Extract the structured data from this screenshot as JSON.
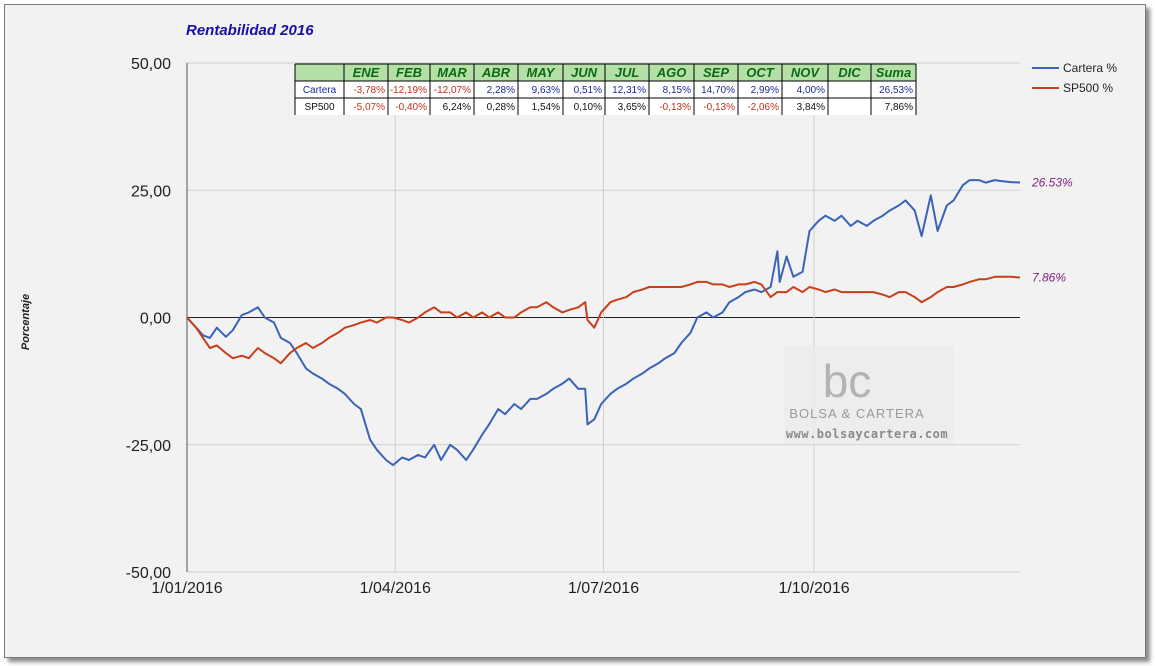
{
  "chart_data": {
    "type": "line",
    "title": "Rentabilidad 2016",
    "ylabel": "Porcentaje",
    "xlabel": "",
    "ylim": [
      -50,
      50
    ],
    "y_ticks": [
      "50,00",
      "25,00",
      "0,00",
      "-25,00",
      "-50,00"
    ],
    "x_ticks": [
      "1/01/2016",
      "1/04/2016",
      "1/07/2016",
      "1/10/2016"
    ],
    "x_range": [
      "2016-01-01",
      "2016-12-30"
    ],
    "grid": true,
    "legend_position": "right",
    "series": [
      {
        "name": "Cartera %",
        "color": "#3a63b8",
        "end_label": "26.53%",
        "points": [
          [
            "2016-01-01",
            0
          ],
          [
            "2016-01-05",
            -2
          ],
          [
            "2016-01-08",
            -3.5
          ],
          [
            "2016-01-11",
            -4
          ],
          [
            "2016-01-14",
            -2
          ],
          [
            "2016-01-18",
            -3.8
          ],
          [
            "2016-01-21",
            -2.5
          ],
          [
            "2016-01-25",
            0.5
          ],
          [
            "2016-01-28",
            1
          ],
          [
            "2016-02-01",
            2
          ],
          [
            "2016-02-04",
            0
          ],
          [
            "2016-02-08",
            -1
          ],
          [
            "2016-02-11",
            -4
          ],
          [
            "2016-02-15",
            -5
          ],
          [
            "2016-02-18",
            -7
          ],
          [
            "2016-02-22",
            -10
          ],
          [
            "2016-02-25",
            -11
          ],
          [
            "2016-02-29",
            -12
          ],
          [
            "2016-03-03",
            -13
          ],
          [
            "2016-03-07",
            -14
          ],
          [
            "2016-03-10",
            -15
          ],
          [
            "2016-03-14",
            -17
          ],
          [
            "2016-03-17",
            -18
          ],
          [
            "2016-03-21",
            -24
          ],
          [
            "2016-03-24",
            -26
          ],
          [
            "2016-03-28",
            -28
          ],
          [
            "2016-03-31",
            -29
          ],
          [
            "2016-04-04",
            -27.5
          ],
          [
            "2016-04-07",
            -28
          ],
          [
            "2016-04-11",
            -27
          ],
          [
            "2016-04-14",
            -27.5
          ],
          [
            "2016-04-18",
            -25
          ],
          [
            "2016-04-21",
            -28
          ],
          [
            "2016-04-25",
            -25
          ],
          [
            "2016-04-28",
            -26
          ],
          [
            "2016-05-02",
            -28
          ],
          [
            "2016-05-05",
            -26
          ],
          [
            "2016-05-09",
            -23
          ],
          [
            "2016-05-12",
            -21
          ],
          [
            "2016-05-16",
            -18
          ],
          [
            "2016-05-19",
            -19
          ],
          [
            "2016-05-23",
            -17
          ],
          [
            "2016-05-26",
            -18
          ],
          [
            "2016-05-30",
            -16
          ],
          [
            "2016-06-02",
            -16
          ],
          [
            "2016-06-06",
            -15
          ],
          [
            "2016-06-09",
            -14
          ],
          [
            "2016-06-13",
            -13
          ],
          [
            "2016-06-16",
            -12
          ],
          [
            "2016-06-20",
            -14
          ],
          [
            "2016-06-23",
            -14
          ],
          [
            "2016-06-24",
            -21
          ],
          [
            "2016-06-27",
            -20
          ],
          [
            "2016-06-30",
            -17
          ],
          [
            "2016-07-04",
            -15
          ],
          [
            "2016-07-07",
            -14
          ],
          [
            "2016-07-11",
            -13
          ],
          [
            "2016-07-14",
            -12
          ],
          [
            "2016-07-18",
            -11
          ],
          [
            "2016-07-21",
            -10
          ],
          [
            "2016-07-25",
            -9
          ],
          [
            "2016-07-28",
            -8
          ],
          [
            "2016-08-01",
            -7
          ],
          [
            "2016-08-04",
            -5
          ],
          [
            "2016-08-08",
            -3
          ],
          [
            "2016-08-11",
            0
          ],
          [
            "2016-08-15",
            1
          ],
          [
            "2016-08-18",
            0
          ],
          [
            "2016-08-22",
            1
          ],
          [
            "2016-08-25",
            3
          ],
          [
            "2016-08-29",
            4
          ],
          [
            "2016-09-01",
            5
          ],
          [
            "2016-09-05",
            5.5
          ],
          [
            "2016-09-08",
            5
          ],
          [
            "2016-09-12",
            6
          ],
          [
            "2016-09-15",
            13
          ],
          [
            "2016-09-16",
            7
          ],
          [
            "2016-09-19",
            12
          ],
          [
            "2016-09-22",
            8
          ],
          [
            "2016-09-26",
            9
          ],
          [
            "2016-09-29",
            17
          ],
          [
            "2016-10-03",
            19
          ],
          [
            "2016-10-06",
            20
          ],
          [
            "2016-10-10",
            19
          ],
          [
            "2016-10-13",
            20
          ],
          [
            "2016-10-17",
            18
          ],
          [
            "2016-10-20",
            19
          ],
          [
            "2016-10-24",
            18
          ],
          [
            "2016-10-27",
            19
          ],
          [
            "2016-10-31",
            20
          ],
          [
            "2016-11-03",
            21
          ],
          [
            "2016-11-07",
            22
          ],
          [
            "2016-11-10",
            23
          ],
          [
            "2016-11-14",
            21
          ],
          [
            "2016-11-17",
            16
          ],
          [
            "2016-11-21",
            24
          ],
          [
            "2016-11-24",
            17
          ],
          [
            "2016-11-28",
            22
          ],
          [
            "2016-12-01",
            23
          ],
          [
            "2016-12-05",
            26
          ],
          [
            "2016-12-08",
            27
          ],
          [
            "2016-12-12",
            27
          ],
          [
            "2016-12-15",
            26.5
          ],
          [
            "2016-12-19",
            27
          ],
          [
            "2016-12-22",
            26.8
          ],
          [
            "2016-12-26",
            26.6
          ],
          [
            "2016-12-30",
            26.53
          ]
        ]
      },
      {
        "name": "SP500 %",
        "color": "#c6401a",
        "end_label": "7.86%",
        "points": [
          [
            "2016-01-01",
            0
          ],
          [
            "2016-01-05",
            -2
          ],
          [
            "2016-01-08",
            -4
          ],
          [
            "2016-01-11",
            -6
          ],
          [
            "2016-01-14",
            -5.5
          ],
          [
            "2016-01-18",
            -7
          ],
          [
            "2016-01-21",
            -8
          ],
          [
            "2016-01-25",
            -7.5
          ],
          [
            "2016-01-28",
            -8
          ],
          [
            "2016-02-01",
            -6
          ],
          [
            "2016-02-04",
            -7
          ],
          [
            "2016-02-08",
            -8
          ],
          [
            "2016-02-11",
            -9
          ],
          [
            "2016-02-15",
            -7
          ],
          [
            "2016-02-18",
            -6
          ],
          [
            "2016-02-22",
            -5
          ],
          [
            "2016-02-25",
            -6
          ],
          [
            "2016-02-29",
            -5
          ],
          [
            "2016-03-03",
            -4
          ],
          [
            "2016-03-07",
            -3
          ],
          [
            "2016-03-10",
            -2
          ],
          [
            "2016-03-14",
            -1.5
          ],
          [
            "2016-03-17",
            -1
          ],
          [
            "2016-03-21",
            -0.5
          ],
          [
            "2016-03-24",
            -1
          ],
          [
            "2016-03-28",
            0
          ],
          [
            "2016-03-31",
            0
          ],
          [
            "2016-04-04",
            -0.5
          ],
          [
            "2016-04-07",
            -1
          ],
          [
            "2016-04-11",
            0
          ],
          [
            "2016-04-14",
            1
          ],
          [
            "2016-04-18",
            2
          ],
          [
            "2016-04-21",
            1
          ],
          [
            "2016-04-25",
            1
          ],
          [
            "2016-04-28",
            0
          ],
          [
            "2016-05-02",
            1
          ],
          [
            "2016-05-05",
            0
          ],
          [
            "2016-05-09",
            1
          ],
          [
            "2016-05-12",
            0
          ],
          [
            "2016-05-16",
            1
          ],
          [
            "2016-05-19",
            0
          ],
          [
            "2016-05-23",
            0
          ],
          [
            "2016-05-26",
            1
          ],
          [
            "2016-05-30",
            2
          ],
          [
            "2016-06-02",
            2
          ],
          [
            "2016-06-06",
            3
          ],
          [
            "2016-06-09",
            2
          ],
          [
            "2016-06-13",
            1
          ],
          [
            "2016-06-16",
            1.5
          ],
          [
            "2016-06-20",
            2
          ],
          [
            "2016-06-23",
            3
          ],
          [
            "2016-06-24",
            -0.5
          ],
          [
            "2016-06-27",
            -2
          ],
          [
            "2016-06-30",
            1
          ],
          [
            "2016-07-04",
            3
          ],
          [
            "2016-07-07",
            3.5
          ],
          [
            "2016-07-11",
            4
          ],
          [
            "2016-07-14",
            5
          ],
          [
            "2016-07-18",
            5.5
          ],
          [
            "2016-07-21",
            6
          ],
          [
            "2016-07-25",
            6
          ],
          [
            "2016-07-28",
            6
          ],
          [
            "2016-08-01",
            6
          ],
          [
            "2016-08-04",
            6
          ],
          [
            "2016-08-08",
            6.5
          ],
          [
            "2016-08-11",
            7
          ],
          [
            "2016-08-15",
            7
          ],
          [
            "2016-08-18",
            6.5
          ],
          [
            "2016-08-22",
            6.5
          ],
          [
            "2016-08-25",
            6
          ],
          [
            "2016-08-29",
            6.5
          ],
          [
            "2016-09-01",
            6.5
          ],
          [
            "2016-09-05",
            7
          ],
          [
            "2016-09-08",
            6.5
          ],
          [
            "2016-09-12",
            4
          ],
          [
            "2016-09-15",
            5
          ],
          [
            "2016-09-19",
            5
          ],
          [
            "2016-09-22",
            6
          ],
          [
            "2016-09-26",
            5
          ],
          [
            "2016-09-29",
            6
          ],
          [
            "2016-10-03",
            5.5
          ],
          [
            "2016-10-06",
            5
          ],
          [
            "2016-10-10",
            5.5
          ],
          [
            "2016-10-13",
            5
          ],
          [
            "2016-10-17",
            5
          ],
          [
            "2016-10-20",
            5
          ],
          [
            "2016-10-24",
            5
          ],
          [
            "2016-10-27",
            5
          ],
          [
            "2016-10-31",
            4.5
          ],
          [
            "2016-11-03",
            4
          ],
          [
            "2016-11-07",
            5
          ],
          [
            "2016-11-10",
            5
          ],
          [
            "2016-11-14",
            4
          ],
          [
            "2016-11-17",
            3
          ],
          [
            "2016-11-21",
            4
          ],
          [
            "2016-11-24",
            5
          ],
          [
            "2016-11-28",
            6
          ],
          [
            "2016-12-01",
            6
          ],
          [
            "2016-12-05",
            6.5
          ],
          [
            "2016-12-08",
            7
          ],
          [
            "2016-12-12",
            7.5
          ],
          [
            "2016-12-15",
            7.5
          ],
          [
            "2016-12-19",
            8
          ],
          [
            "2016-12-22",
            8
          ],
          [
            "2016-12-26",
            8
          ],
          [
            "2016-12-30",
            7.86
          ]
        ]
      }
    ],
    "table": {
      "headers": [
        "",
        "ENE",
        "FEB",
        "MAR",
        "ABR",
        "MAY",
        "JUN",
        "JUL",
        "AGO",
        "SEP",
        "OCT",
        "NOV",
        "DIC",
        "Suma"
      ],
      "rows": [
        {
          "label": "Cartera",
          "cells": [
            "-3,78%",
            "-12,19%",
            "-12,07%",
            "2,28%",
            "9,63%",
            "0,51%",
            "12,31%",
            "8,15%",
            "14,70%",
            "2,99%",
            "4,00%",
            "",
            "26,53%"
          ]
        },
        {
          "label": "SP500",
          "cells": [
            "-5,07%",
            "-0,40%",
            "6,24%",
            "0,28%",
            "1,54%",
            "0,10%",
            "3,65%",
            "-0,13%",
            "-0,13%",
            "-2,06%",
            "3,84%",
            "",
            "7,86%"
          ]
        }
      ]
    }
  },
  "watermark": {
    "logo": "bc",
    "name": "BOLSA & CARTERA",
    "url": "www.bolsaycartera.com"
  },
  "colors": {
    "negative": "#c0301c",
    "positive_cartera": "#1b2a9a",
    "positive_sp": "#111111",
    "header_bg": "#b4e0a8"
  }
}
